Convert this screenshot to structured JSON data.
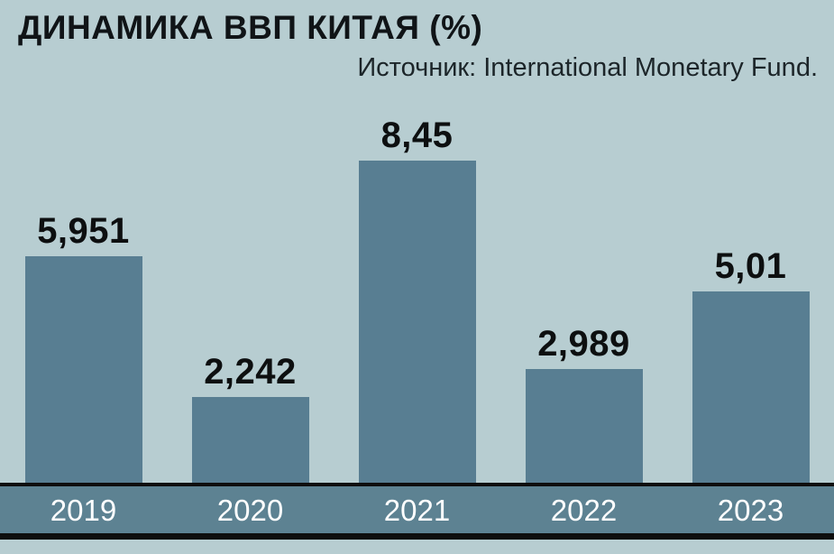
{
  "title": "ДИНАМИКА ВВП КИТАЯ (%)",
  "source": "Источник: International Monetary Fund.",
  "colors": {
    "background": "#b7cdd1",
    "bar": "#587e92",
    "axis_band": "#5d8292",
    "axis_line": "#0e0e0e",
    "value_label": "#0d0f10",
    "year_text": "#ffffff",
    "title_text": "#101417"
  },
  "chart_data": {
    "type": "bar",
    "title": "ДИНАМИКА ВВП КИТАЯ (%)",
    "subtitle": "Источник: International Monetary Fund.",
    "categories": [
      "2019",
      "2020",
      "2021",
      "2022",
      "2023"
    ],
    "values": [
      5.951,
      2.242,
      8.45,
      2.989,
      5.01
    ],
    "value_labels": [
      "5,951",
      "2,242",
      "8,45",
      "2,989",
      "5,01"
    ],
    "xlabel": "",
    "ylabel": "",
    "ylim": [
      0,
      9
    ],
    "grid": false,
    "legend": false,
    "bar_color": "#587e92",
    "decimal_separator": ","
  }
}
